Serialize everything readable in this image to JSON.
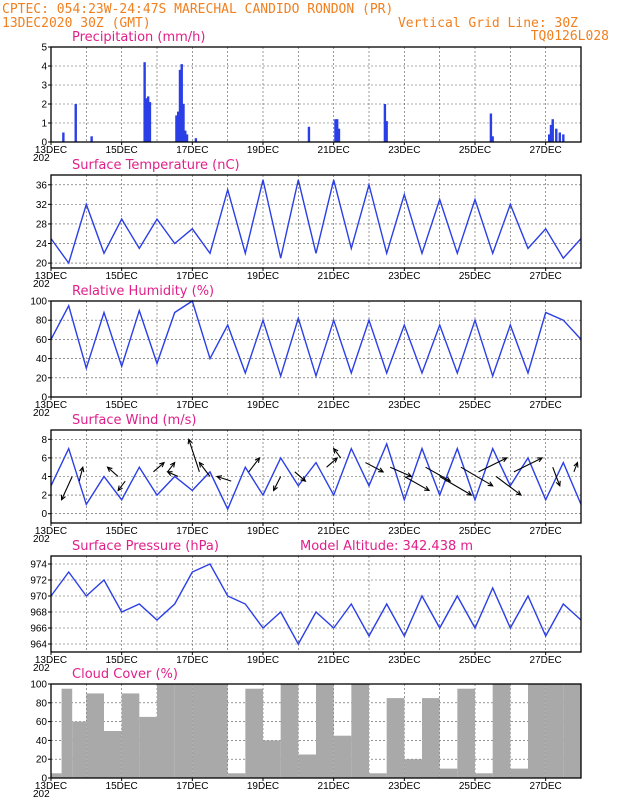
{
  "header": {
    "left1": "CPTEC:  054:23W-24:47S  MARECHAL CANDIDO RONDON (PR)",
    "left2": "13DEC2020 30Z (GMT)",
    "right2": "Vertical Grid Line: 30Z",
    "right3": "TQ0126L028"
  },
  "colors": {
    "header": "#f08020",
    "panel_title": "#e0208a",
    "line": "#2b3fe6",
    "bar": "#2b3fe6",
    "cloud": "#a9a9a9",
    "arrow": "#000000"
  },
  "x_axis": {
    "tick_labels": [
      "13DEC",
      "15DEC",
      "17DEC",
      "19DEC",
      "21DEC",
      "23DEC",
      "25DEC",
      "27DEC"
    ],
    "sub_label": "202",
    "range_days": [
      0,
      15
    ]
  },
  "chart_data": [
    {
      "type": "bar",
      "title": "Precipitation (mm/h)",
      "ylim": [
        0,
        5
      ],
      "yticks": [
        0,
        1,
        2,
        3,
        4,
        5
      ],
      "grid": true,
      "x": [
        0.35,
        0.7,
        1.15,
        2.65,
        2.7,
        2.75,
        2.8,
        3.55,
        3.6,
        3.65,
        3.7,
        3.75,
        3.8,
        3.85,
        4.1,
        7.3,
        8.05,
        8.1,
        8.15,
        9.45,
        9.5,
        12.45,
        12.5,
        14.1,
        14.15,
        14.2,
        14.3,
        14.4,
        14.5
      ],
      "values": [
        0.5,
        2.0,
        0.3,
        4.2,
        2.3,
        2.4,
        2.1,
        1.4,
        1.6,
        3.8,
        4.1,
        2.0,
        0.6,
        0.4,
        0.2,
        0.8,
        1.2,
        1.2,
        0.7,
        2.0,
        1.1,
        1.5,
        0.3,
        0.4,
        0.9,
        1.2,
        0.7,
        0.5,
        0.4
      ]
    },
    {
      "type": "line",
      "title": "Surface Temperature (nC)",
      "ylim": [
        19,
        38
      ],
      "yticks": [
        20,
        24,
        28,
        32,
        36
      ],
      "grid": true,
      "x": [
        0,
        0.5,
        1,
        1.5,
        2,
        2.5,
        3,
        3.5,
        4,
        4.5,
        5,
        5.5,
        6,
        6.5,
        7,
        7.5,
        8,
        8.5,
        9,
        9.5,
        10,
        10.5,
        11,
        11.5,
        12,
        12.5,
        13,
        13.5,
        14,
        14.5,
        15
      ],
      "values": [
        25,
        20,
        32,
        22,
        29,
        23,
        29,
        24,
        27,
        22,
        35,
        22,
        37,
        21,
        37,
        22,
        37,
        23,
        36,
        22,
        34,
        22,
        33,
        22,
        33,
        22,
        32,
        23,
        27,
        21,
        25
      ]
    },
    {
      "type": "line",
      "title": "Relative Humidity (%)",
      "ylim": [
        0,
        100
      ],
      "yticks": [
        0,
        20,
        40,
        60,
        80,
        100
      ],
      "grid": true,
      "x": [
        0,
        0.5,
        1,
        1.5,
        2,
        2.5,
        3,
        3.5,
        4,
        4.5,
        5,
        5.5,
        6,
        6.5,
        7,
        7.5,
        8,
        8.5,
        9,
        9.5,
        10,
        10.5,
        11,
        11.5,
        12,
        12.5,
        13,
        13.5,
        14,
        14.5,
        15
      ],
      "values": [
        60,
        95,
        30,
        88,
        32,
        90,
        35,
        88,
        100,
        40,
        75,
        25,
        80,
        22,
        82,
        22,
        80,
        25,
        80,
        25,
        75,
        25,
        75,
        25,
        80,
        22,
        75,
        25,
        88,
        80,
        60
      ]
    },
    {
      "type": "line",
      "title": "Surface Wind (m/s)",
      "ylim": [
        -1,
        9
      ],
      "yticks": [
        0,
        2,
        4,
        6,
        8
      ],
      "grid": true,
      "x": [
        0,
        0.5,
        1,
        1.5,
        2,
        2.5,
        3,
        3.5,
        4,
        4.5,
        5,
        5.5,
        6,
        6.5,
        7,
        7.5,
        8,
        8.5,
        9,
        9.5,
        10,
        10.5,
        11,
        11.5,
        12,
        12.5,
        13,
        13.5,
        14,
        14.5,
        15
      ],
      "values": [
        3,
        7,
        1,
        4,
        1.5,
        5,
        2,
        4,
        2.5,
        4.5,
        0.5,
        5,
        2,
        6,
        3,
        5.5,
        2,
        7,
        3,
        7.5,
        1.5,
        7,
        2,
        7,
        1.5,
        7,
        3,
        6,
        1.5,
        5.5,
        1
      ],
      "arrows": {
        "x": [
          0.6,
          0.8,
          1.9,
          2.1,
          2.9,
          3.3,
          3.6,
          4.2,
          4.5,
          5.1,
          5.6,
          6.5,
          6.9,
          7.8,
          8.2,
          8.9,
          9.6,
          10.0,
          10.6,
          11.0,
          11.6,
          12.1,
          12.6,
          13.1,
          14.2,
          14.8
        ],
        "values": [
          4,
          3.5,
          4,
          3.5,
          4.5,
          4.5,
          4,
          4.5,
          4,
          3.5,
          4.5,
          4,
          4.5,
          5,
          6,
          5.5,
          5,
          4,
          5,
          4,
          5,
          4.5,
          4,
          4.5,
          5,
          4.5
        ],
        "dx": [
          -0.3,
          0.1,
          -0.3,
          -0.2,
          0.3,
          0.2,
          -0.3,
          -0.3,
          -0.3,
          -0.4,
          0.3,
          -0.2,
          0.3,
          0.3,
          -0.2,
          0.5,
          0.6,
          0.7,
          0.7,
          0.9,
          0.9,
          0.8,
          0.7,
          0.8,
          0.2,
          0.1
        ],
        "dy": [
          -2.5,
          1.5,
          1,
          -1,
          1,
          1,
          0.5,
          3.5,
          1.5,
          0.5,
          1.5,
          -1.5,
          -1,
          1,
          1,
          -1,
          -1,
          -1.5,
          -1.5,
          -2,
          -2,
          1.5,
          -2,
          1.5,
          -2,
          1
        ]
      }
    },
    {
      "type": "line",
      "title": "Surface Pressure (hPa)",
      "annotation": "Model Altitude: 342.438 m",
      "ylim": [
        963,
        975
      ],
      "yticks": [
        964,
        966,
        968,
        970,
        972,
        974
      ],
      "grid": true,
      "x": [
        0,
        0.5,
        1,
        1.5,
        2,
        2.5,
        3,
        3.5,
        4,
        4.5,
        5,
        5.5,
        6,
        6.5,
        7,
        7.5,
        8,
        8.5,
        9,
        9.5,
        10,
        10.5,
        11,
        11.5,
        12,
        12.5,
        13,
        13.5,
        14,
        14.5,
        15
      ],
      "values": [
        970,
        973,
        970,
        972,
        968,
        969,
        967,
        969,
        973,
        974,
        970,
        969,
        966,
        968,
        964,
        968,
        966,
        969,
        965,
        969,
        965,
        970,
        966,
        970,
        966,
        971,
        966,
        970,
        965,
        969,
        967
      ]
    },
    {
      "type": "area",
      "title": "Cloud Cover (%)",
      "ylim": [
        0,
        100
      ],
      "yticks": [
        0,
        20,
        40,
        60,
        80,
        100
      ],
      "grid": true,
      "x": [
        0,
        0.3,
        0.6,
        1,
        1.5,
        2,
        2.5,
        3,
        3.5,
        4,
        4.5,
        5,
        5.5,
        6,
        6.5,
        7,
        7.5,
        8,
        8.5,
        9,
        9.5,
        10,
        10.5,
        11,
        11.5,
        12,
        12.5,
        13,
        13.5,
        14,
        14.5,
        15
      ],
      "values": [
        5,
        95,
        60,
        90,
        50,
        90,
        65,
        100,
        100,
        100,
        100,
        5,
        95,
        40,
        100,
        25,
        100,
        45,
        100,
        5,
        85,
        20,
        85,
        10,
        95,
        5,
        100,
        10,
        100,
        100,
        100,
        0
      ]
    }
  ]
}
